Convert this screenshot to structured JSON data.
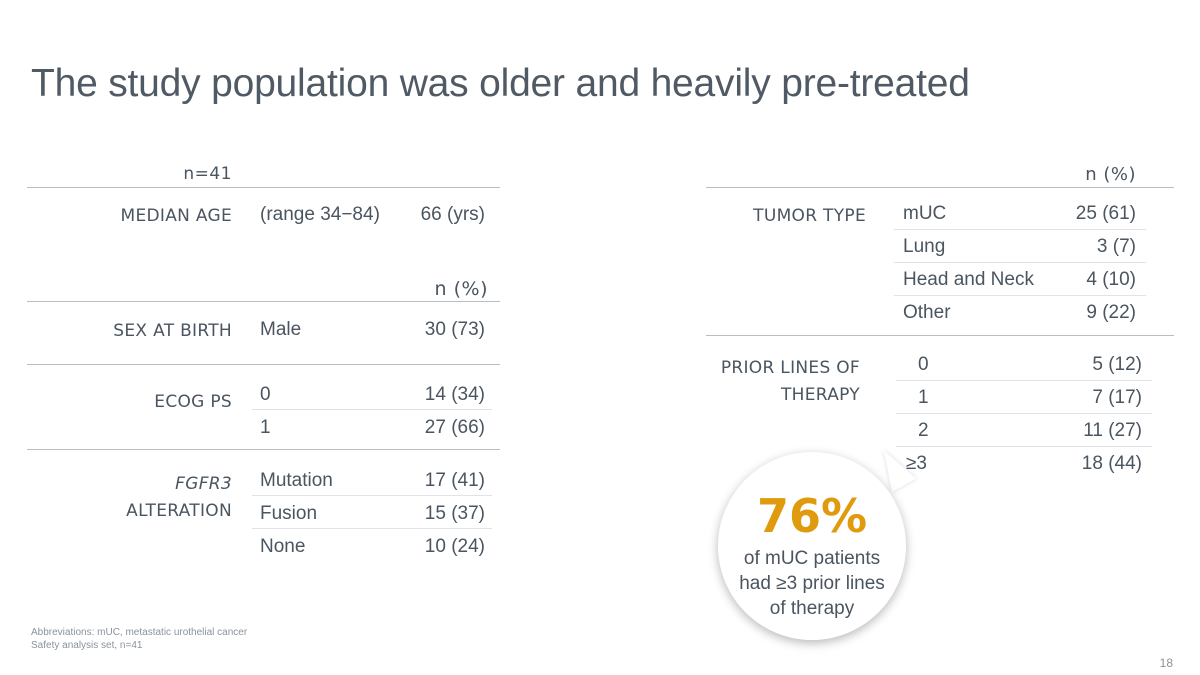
{
  "title": "The study population was older and heavily pre-treated",
  "left": {
    "n_header": "n=41",
    "median_age": {
      "label": "MEDIAN AGE",
      "range": "(range 34−84)",
      "value": "66 (yrs)"
    },
    "n_pct_header": "n (%)",
    "sex": {
      "label": "SEX AT BIRTH",
      "rows": [
        {
          "name": "Male",
          "value": "30 (73)"
        }
      ]
    },
    "ecog": {
      "label": "ECOG PS",
      "rows": [
        {
          "name": "0",
          "value": "14 (34)"
        },
        {
          "name": "1",
          "value": "27 (66)"
        }
      ]
    },
    "fgfr3": {
      "label_italic": "FGFR3",
      "label": "ALTERATION",
      "rows": [
        {
          "name": "Mutation",
          "value": "17 (41)"
        },
        {
          "name": "Fusion",
          "value": "15 (37)"
        },
        {
          "name": "None",
          "value": "10 (24)"
        }
      ]
    }
  },
  "right": {
    "n_pct_header": "n (%)",
    "tumor": {
      "label": "TUMOR TYPE",
      "rows": [
        {
          "name": "mUC",
          "value": "25 (61)"
        },
        {
          "name": "Lung",
          "value": "3 (7)"
        },
        {
          "name": "Head and Neck",
          "value": "4 (10)"
        },
        {
          "name": "Other",
          "value": "9 (22)"
        }
      ]
    },
    "prior": {
      "label_line1": "PRIOR LINES OF",
      "label_line2": "THERAPY",
      "rows": [
        {
          "name": "0",
          "value": "5 (12)"
        },
        {
          "name": "1",
          "value": "7 (17)"
        },
        {
          "name": "2",
          "value": "11 (27)"
        },
        {
          "name": "≥3",
          "value": "18 (44)"
        }
      ]
    }
  },
  "callout": {
    "percent": "76%",
    "line1": "of mUC patients",
    "line2": "had ≥3 prior lines",
    "line3": "of therapy",
    "accent_color": "#e09a0d"
  },
  "footnotes": {
    "line1": "Abbreviations: mUC, metastatic urothelial cancer",
    "line2": "Safety analysis set, n=41"
  },
  "page_number": "18"
}
